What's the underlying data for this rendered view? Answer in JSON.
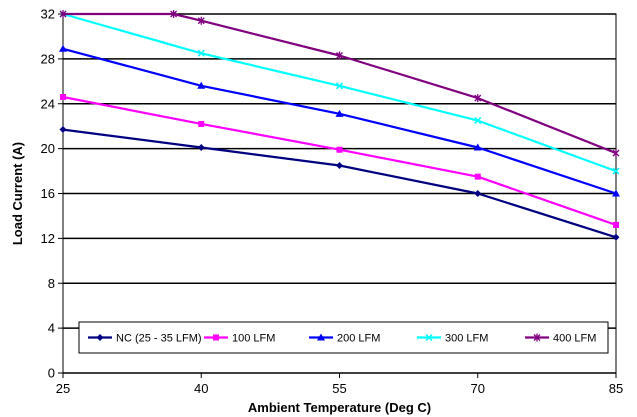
{
  "chart_data": {
    "type": "line",
    "xlabel": "Ambient Temperature (Deg C)",
    "ylabel": "Load Current (A)",
    "x": [
      25,
      40,
      55,
      70,
      85
    ],
    "xlim": [
      25,
      85
    ],
    "ylim": [
      0,
      32
    ],
    "xticks": [
      "25",
      "40",
      "55",
      "70",
      "85"
    ],
    "yticks": [
      "0",
      "4",
      "8",
      "12",
      "16",
      "20",
      "24",
      "28",
      "32"
    ],
    "grid": "horizontal",
    "legend_position": "bottom",
    "series": [
      {
        "name": "NC (25 - 35 LFM)",
        "color": "#000080",
        "marker": "diamond",
        "points": [
          [
            25,
            21.7
          ],
          [
            40,
            20.1
          ],
          [
            55,
            18.5
          ],
          [
            70,
            16.0
          ],
          [
            85,
            12.1
          ]
        ]
      },
      {
        "name": "100 LFM",
        "color": "#FF00FF",
        "marker": "square",
        "points": [
          [
            25,
            24.6
          ],
          [
            40,
            22.2
          ],
          [
            55,
            19.9
          ],
          [
            70,
            17.5
          ],
          [
            85,
            13.2
          ]
        ]
      },
      {
        "name": "200 LFM",
        "color": "#0000FF",
        "marker": "triangle",
        "points": [
          [
            25,
            28.9
          ],
          [
            40,
            25.6
          ],
          [
            55,
            23.1
          ],
          [
            70,
            20.1
          ],
          [
            85,
            16.0
          ]
        ]
      },
      {
        "name": "300 LFM",
        "color": "#00FFFF",
        "marker": "x",
        "points": [
          [
            25,
            32.0
          ],
          [
            40,
            28.5
          ],
          [
            55,
            25.6
          ],
          [
            70,
            22.5
          ],
          [
            85,
            18.0
          ]
        ]
      },
      {
        "name": "400 LFM",
        "color": "#800080",
        "marker": "star",
        "points": [
          [
            25,
            32.0
          ],
          [
            37,
            32.0
          ],
          [
            40,
            31.4
          ],
          [
            55,
            28.3
          ],
          [
            70,
            24.5
          ],
          [
            85,
            19.6
          ]
        ]
      }
    ]
  }
}
